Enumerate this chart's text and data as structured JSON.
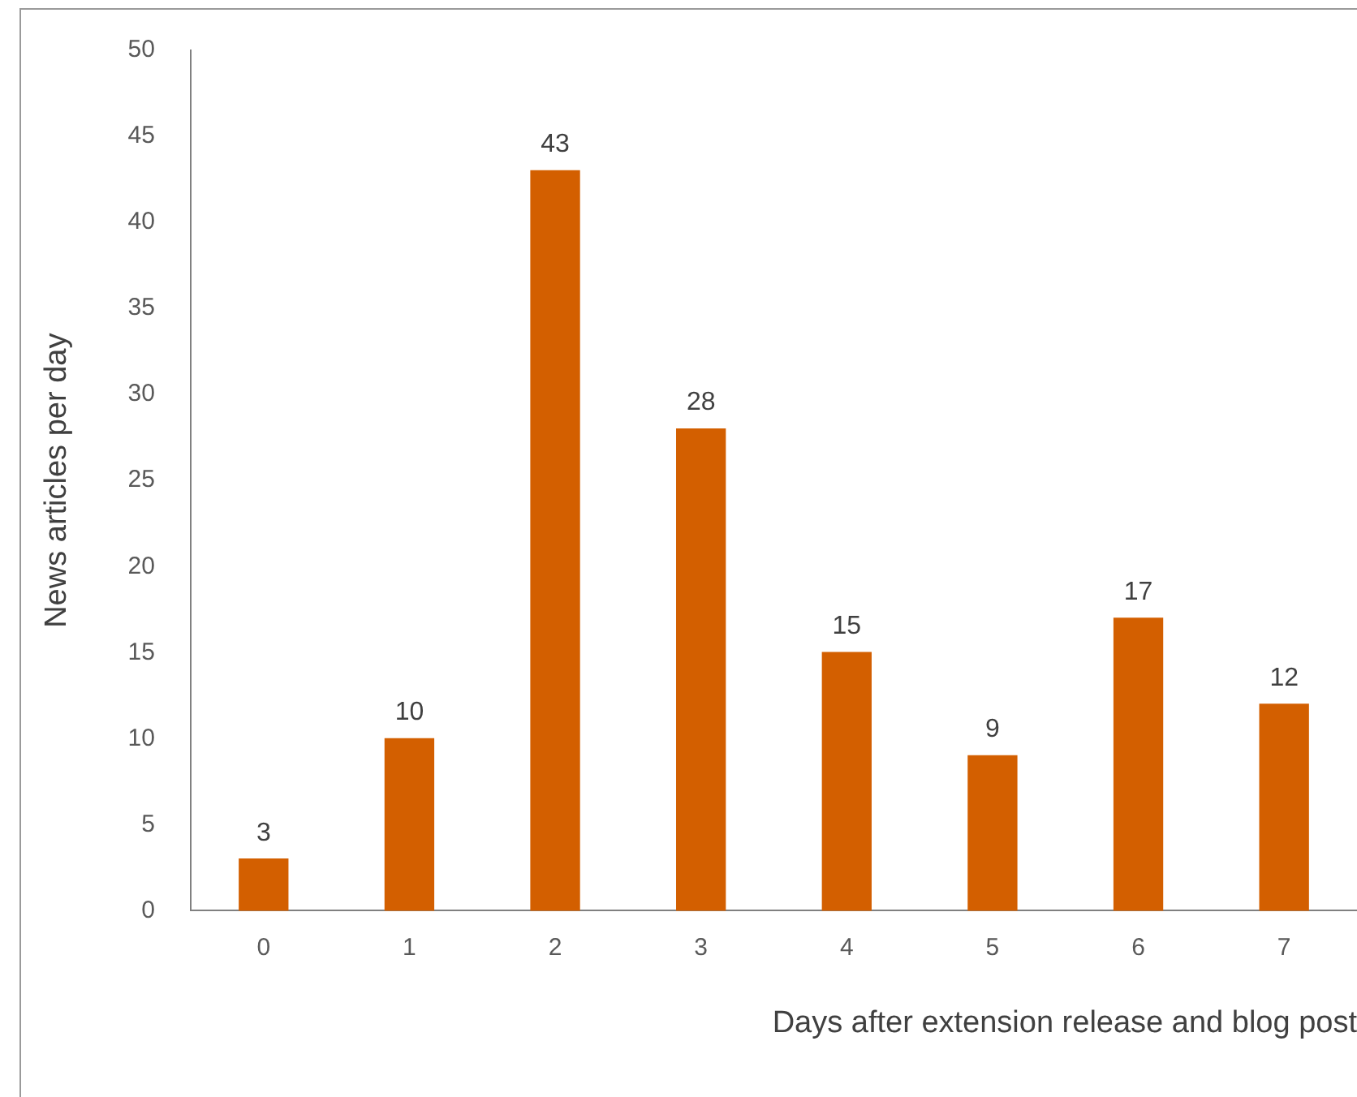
{
  "chart_data": {
    "type": "bar",
    "xlabel": "Days after extension release and blog post",
    "ylabel": "News articles per day",
    "categories": [
      "0",
      "1",
      "2",
      "3",
      "4",
      "5",
      "6",
      "7"
    ],
    "values": [
      3,
      10,
      43,
      28,
      15,
      9,
      17,
      12
    ],
    "color": "#d35f00",
    "ylim": [
      0,
      50
    ],
    "yticks": [
      0,
      5,
      10,
      15,
      20,
      25,
      30,
      35,
      40,
      45,
      50
    ],
    "grid": false,
    "legend": false,
    "data_labels": true
  }
}
